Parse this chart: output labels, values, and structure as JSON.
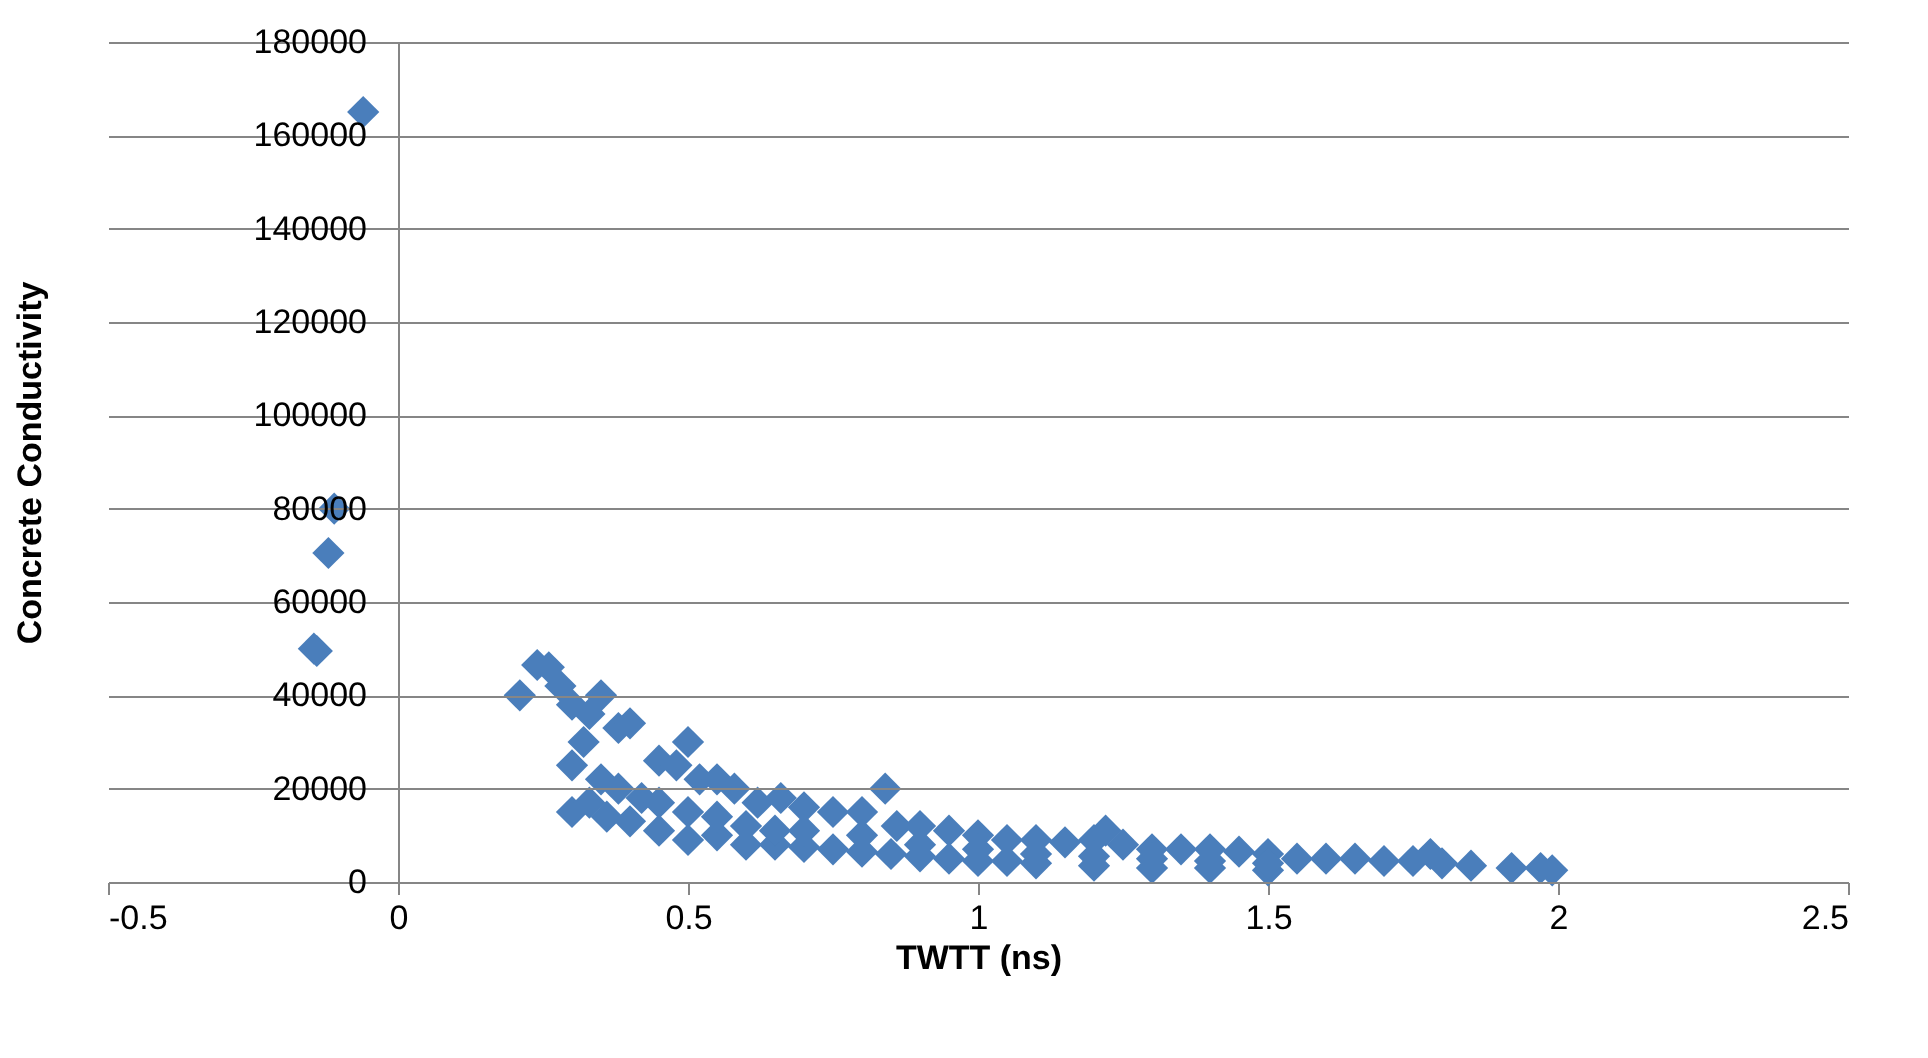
{
  "chart_data": {
    "type": "scatter",
    "xlabel": "TWTT (ns)",
    "ylabel": "Concrete Conductivity",
    "xlim": [
      -0.5,
      2.5
    ],
    "xticks": [
      -0.5,
      0,
      0.5,
      1,
      1.5,
      2,
      2.5
    ],
    "ylim": [
      0,
      180000
    ],
    "yticks": [
      0,
      20000,
      40000,
      60000,
      80000,
      100000,
      120000,
      140000,
      160000,
      180000
    ],
    "grid": "y",
    "marker": "diamond",
    "legend": false,
    "series": [
      {
        "color": "#4a7ebb",
        "x": [
          -0.06,
          -0.11,
          -0.12,
          -0.14,
          -0.145,
          0.21,
          0.24,
          0.26,
          0.28,
          0.3,
          0.33,
          0.35,
          0.38,
          0.4,
          0.45,
          0.48,
          0.5,
          0.52,
          0.55,
          0.58,
          0.62,
          0.66,
          0.7,
          0.75,
          0.8,
          0.84,
          0.86,
          0.9,
          0.95,
          1.0,
          1.05,
          1.1,
          1.15,
          1.2,
          1.22,
          1.25,
          1.3,
          1.35,
          1.4,
          1.45,
          1.5,
          1.55,
          1.6,
          1.65,
          1.7,
          1.75,
          1.78,
          1.8,
          1.85,
          1.92,
          1.97,
          1.99,
          0.3,
          0.33,
          0.36,
          0.4,
          0.45,
          0.5,
          0.55,
          0.6,
          0.65,
          0.7,
          0.75,
          0.8,
          0.85,
          0.9,
          0.95,
          1.0,
          1.05,
          1.1,
          1.2,
          1.3,
          1.4,
          1.5,
          0.3,
          0.32,
          0.35,
          0.38,
          0.42,
          0.45,
          0.5,
          0.55,
          0.6,
          0.65,
          0.7,
          0.8,
          0.9,
          1.0,
          1.1,
          1.2,
          1.3,
          1.4,
          1.5
        ],
        "values": [
          165000,
          80000,
          70500,
          49500,
          50000,
          40000,
          46500,
          46000,
          42000,
          38000,
          36000,
          40000,
          33000,
          34000,
          26000,
          25000,
          30000,
          22000,
          22000,
          20000,
          17000,
          18000,
          16000,
          15000,
          15000,
          20000,
          12000,
          12000,
          11000,
          10000,
          9000,
          9000,
          8500,
          9000,
          11000,
          8000,
          7000,
          7000,
          7000,
          6500,
          6000,
          5000,
          5000,
          5000,
          4500,
          4500,
          6000,
          4000,
          3500,
          3000,
          3000,
          2500,
          15000,
          17000,
          14000,
          13000,
          11000,
          9000,
          10000,
          8000,
          8000,
          7500,
          7000,
          6500,
          6000,
          5500,
          5000,
          4500,
          4500,
          4000,
          3500,
          3000,
          3000,
          2500,
          25000,
          30000,
          22000,
          20000,
          18000,
          17000,
          15000,
          14000,
          12000,
          11000,
          11000,
          10000,
          8000,
          7000,
          6000,
          5500,
          5000,
          4500,
          4000
        ]
      }
    ]
  }
}
